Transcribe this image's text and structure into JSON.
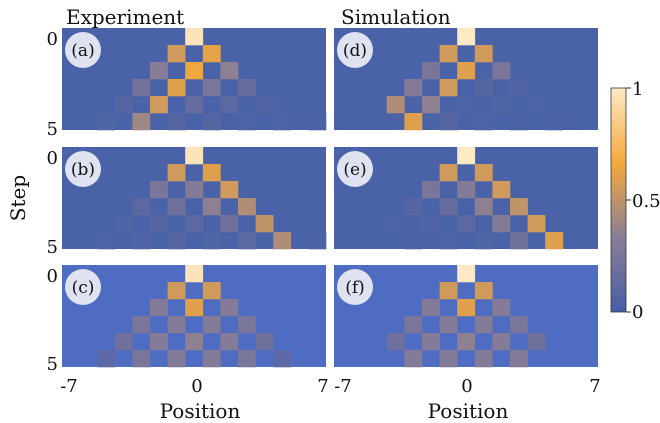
{
  "chart_data": {
    "type": "heatmap",
    "column_titles": [
      "Experiment",
      "Simulation"
    ],
    "xlabel": "Position",
    "ylabel": "Step",
    "x_ticks": [
      "-7",
      "0",
      "7"
    ],
    "y_ticks": [
      "0",
      "5"
    ],
    "x_range": [
      -7,
      7
    ],
    "steps": [
      0,
      1,
      2,
      3,
      4,
      5
    ],
    "colorbar": {
      "ticks": [
        "1",
        "0.5",
        "0"
      ],
      "range": [
        0,
        1
      ],
      "colors": [
        "#465da6",
        "#8a7e96",
        "#f4a93b",
        "#fde9c6"
      ]
    },
    "panels": [
      {
        "label": "(a)",
        "column": 0,
        "row": 0,
        "background": "#4a63a8",
        "values": [
          [
            0,
            0,
            0,
            0,
            0,
            0,
            0,
            0.97,
            0,
            0,
            0,
            0,
            0,
            0,
            0
          ],
          [
            0,
            0,
            0,
            0,
            0,
            0,
            0.55,
            0,
            0.62,
            0,
            0,
            0,
            0,
            0,
            0
          ],
          [
            0,
            0,
            0,
            0,
            0,
            0.32,
            0,
            0.65,
            0,
            0.35,
            0,
            0,
            0,
            0,
            0
          ],
          [
            0,
            0,
            0,
            0,
            0.22,
            0,
            0.6,
            0,
            0.25,
            0,
            0.15,
            0,
            0,
            0,
            0
          ],
          [
            0,
            0,
            0,
            0.1,
            0,
            0.55,
            0,
            0.15,
            0,
            0.12,
            0,
            0.08,
            0,
            0,
            0
          ],
          [
            0,
            0,
            0.08,
            0,
            0.4,
            0,
            0.1,
            0,
            0.1,
            0,
            0.06,
            0,
            0.05,
            0,
            0.03
          ]
        ]
      },
      {
        "label": "(b)",
        "column": 0,
        "row": 1,
        "background": "#4a63a8",
        "values": [
          [
            0,
            0,
            0,
            0,
            0,
            0,
            0,
            0.97,
            0,
            0,
            0,
            0,
            0,
            0,
            0
          ],
          [
            0,
            0,
            0,
            0,
            0,
            0,
            0.55,
            0,
            0.6,
            0,
            0,
            0,
            0,
            0,
            0
          ],
          [
            0,
            0,
            0,
            0,
            0,
            0.25,
            0,
            0.3,
            0,
            0.55,
            0,
            0,
            0,
            0,
            0
          ],
          [
            0,
            0,
            0,
            0,
            0.12,
            0,
            0.2,
            0,
            0.35,
            0,
            0.45,
            0,
            0,
            0,
            0
          ],
          [
            0,
            0,
            0,
            0.08,
            0,
            0.1,
            0,
            0.12,
            0,
            0.2,
            0,
            0.5,
            0,
            0,
            0
          ],
          [
            0,
            0,
            0.05,
            0,
            0.08,
            0,
            0.1,
            0,
            0.08,
            0,
            0.12,
            0,
            0.45,
            0,
            0.03
          ]
        ]
      },
      {
        "label": "(c)",
        "column": 0,
        "row": 2,
        "background": "#4e6cc2",
        "values": [
          [
            0,
            0,
            0,
            0,
            0,
            0,
            0,
            0.97,
            0,
            0,
            0,
            0,
            0,
            0,
            0
          ],
          [
            0,
            0,
            0,
            0,
            0,
            0,
            0.55,
            0,
            0.55,
            0,
            0,
            0,
            0,
            0,
            0
          ],
          [
            0,
            0,
            0,
            0,
            0,
            0.3,
            0,
            0.6,
            0,
            0.3,
            0,
            0,
            0,
            0,
            0
          ],
          [
            0,
            0,
            0,
            0,
            0.25,
            0,
            0.3,
            0,
            0.3,
            0,
            0.25,
            0,
            0,
            0,
            0
          ],
          [
            0,
            0,
            0,
            0.2,
            0,
            0.3,
            0,
            0.35,
            0,
            0.3,
            0,
            0.2,
            0,
            0,
            0
          ],
          [
            0,
            0,
            0.12,
            0,
            0.25,
            0,
            0.3,
            0,
            0.3,
            0,
            0.25,
            0,
            0.12,
            0,
            0
          ]
        ]
      },
      {
        "label": "(d)",
        "column": 1,
        "row": 0,
        "background": "#4a63a8",
        "values": [
          [
            0,
            0,
            0,
            0,
            0,
            0,
            0,
            1,
            0,
            0,
            0,
            0,
            0,
            0,
            0
          ],
          [
            0,
            0,
            0,
            0,
            0,
            0,
            0.55,
            0,
            0.55,
            0,
            0,
            0,
            0,
            0,
            0
          ],
          [
            0,
            0,
            0,
            0,
            0,
            0.25,
            0,
            0.6,
            0,
            0.25,
            0,
            0,
            0,
            0,
            0
          ],
          [
            0,
            0,
            0,
            0,
            0.3,
            0,
            0.55,
            0,
            0.1,
            0,
            0.08,
            0,
            0,
            0,
            0
          ],
          [
            0,
            0,
            0,
            0.45,
            0,
            0.35,
            0,
            0.05,
            0,
            0.08,
            0,
            0.05,
            0,
            0,
            0
          ],
          [
            0,
            0,
            0,
            0,
            0.6,
            0,
            0.1,
            0,
            0.05,
            0,
            0.04,
            0,
            0.03,
            0,
            0
          ]
        ]
      },
      {
        "label": "(e)",
        "column": 1,
        "row": 1,
        "background": "#4a63a8",
        "values": [
          [
            0,
            0,
            0,
            0,
            0,
            0,
            0,
            1,
            0,
            0,
            0,
            0,
            0,
            0,
            0
          ],
          [
            0,
            0,
            0,
            0,
            0,
            0,
            0.55,
            0,
            0.55,
            0,
            0,
            0,
            0,
            0,
            0
          ],
          [
            0,
            0,
            0,
            0,
            0,
            0.25,
            0,
            0.3,
            0,
            0.55,
            0,
            0,
            0,
            0,
            0
          ],
          [
            0,
            0,
            0,
            0,
            0.1,
            0,
            0.15,
            0,
            0.35,
            0,
            0.5,
            0,
            0,
            0,
            0
          ],
          [
            0,
            0,
            0,
            0.05,
            0,
            0.08,
            0,
            0.12,
            0,
            0.3,
            0,
            0.55,
            0,
            0,
            0
          ],
          [
            0,
            0,
            0,
            0,
            0.04,
            0,
            0.06,
            0,
            0.08,
            0,
            0.2,
            0,
            0.6,
            0,
            0
          ]
        ]
      },
      {
        "label": "(f)",
        "column": 1,
        "row": 2,
        "background": "#4e6cc2",
        "values": [
          [
            0,
            0,
            0,
            0,
            0,
            0,
            0,
            1,
            0,
            0,
            0,
            0,
            0,
            0,
            0
          ],
          [
            0,
            0,
            0,
            0,
            0,
            0,
            0.55,
            0,
            0.55,
            0,
            0,
            0,
            0,
            0,
            0
          ],
          [
            0,
            0,
            0,
            0,
            0,
            0.3,
            0,
            0.6,
            0,
            0.3,
            0,
            0,
            0,
            0,
            0
          ],
          [
            0,
            0,
            0,
            0,
            0.25,
            0,
            0.3,
            0,
            0.3,
            0,
            0.25,
            0,
            0,
            0,
            0
          ],
          [
            0,
            0,
            0,
            0.2,
            0,
            0.3,
            0,
            0.35,
            0,
            0.3,
            0,
            0.2,
            0,
            0,
            0
          ],
          [
            0,
            0,
            0,
            0,
            0.3,
            0,
            0.3,
            0,
            0.3,
            0,
            0.3,
            0,
            0,
            0,
            0
          ]
        ]
      }
    ]
  }
}
